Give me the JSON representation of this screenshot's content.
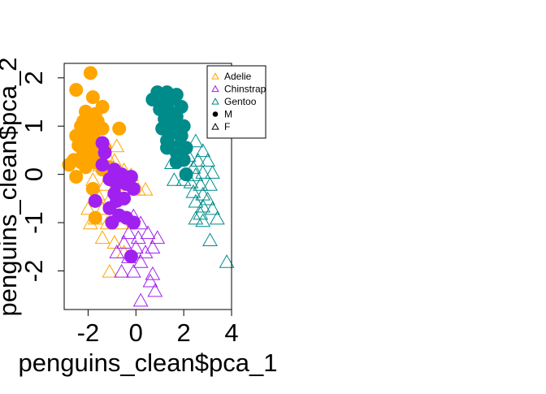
{
  "chart_data": {
    "type": "scatter",
    "xlabel": "penguins_clean$pca_1",
    "ylabel": "penguins_clean$pca_2",
    "xlim": [
      -3.0,
      4.0
    ],
    "ylim": [
      -2.8,
      2.3
    ],
    "x_ticks": [
      -2,
      0,
      2,
      4
    ],
    "y_ticks": [
      -2,
      -1,
      0,
      1,
      2
    ],
    "x_tick_labels": [
      "-2",
      "0",
      "2",
      "4"
    ],
    "y_tick_labels": [
      "-2",
      "-1",
      "0",
      "1",
      "2"
    ],
    "grid": false,
    "legend_position": "top-right",
    "legend": [
      {
        "label": "Adelie",
        "color": "#FFA500",
        "marker": "triangle"
      },
      {
        "label": "Chinstrap",
        "color": "#A020F0",
        "marker": "triangle"
      },
      {
        "label": "Gentoo",
        "color": "#008B8B",
        "marker": "triangle"
      },
      {
        "label": "M",
        "color": "#000000",
        "marker": "filled-circle"
      },
      {
        "label": "F",
        "color": "#000000",
        "marker": "triangle"
      }
    ],
    "series": [
      {
        "species": "Adelie",
        "sex": "M",
        "color": "#FFA500",
        "marker": "filled-circle",
        "points": [
          [
            -1.9,
            2.1
          ],
          [
            -2.5,
            1.75
          ],
          [
            -1.8,
            1.6
          ],
          [
            -1.4,
            1.4
          ],
          [
            -2.1,
            1.3
          ],
          [
            -1.7,
            1.25
          ],
          [
            -2.2,
            1.1
          ],
          [
            -1.9,
            1.15
          ],
          [
            -1.6,
            1.1
          ],
          [
            -2.3,
            1.0
          ],
          [
            -2.0,
            0.95
          ],
          [
            -1.7,
            0.9
          ],
          [
            -1.4,
            0.95
          ],
          [
            -2.5,
            0.8
          ],
          [
            -2.1,
            0.75
          ],
          [
            -1.8,
            0.75
          ],
          [
            -0.7,
            0.95
          ],
          [
            -2.4,
            0.6
          ],
          [
            -2.0,
            0.55
          ],
          [
            -1.6,
            0.6
          ],
          [
            -1.3,
            0.55
          ],
          [
            -2.2,
            0.45
          ],
          [
            -1.9,
            0.4
          ],
          [
            -1.5,
            0.35
          ],
          [
            -2.6,
            0.3
          ],
          [
            -2.3,
            0.25
          ],
          [
            -1.7,
            0.25
          ],
          [
            -2.8,
            0.2
          ],
          [
            -2.1,
            0.15
          ],
          [
            -1.4,
            0.1
          ],
          [
            -1.1,
            0.15
          ],
          [
            -2.5,
            -0.05
          ],
          [
            -1.8,
            -0.3
          ],
          [
            -1.7,
            -0.9
          ]
        ]
      },
      {
        "species": "Adelie",
        "sex": "F",
        "color": "#FFA500",
        "marker": "triangle",
        "points": [
          [
            -0.8,
            0.6
          ],
          [
            -1.2,
            0.4
          ],
          [
            -0.9,
            0.3
          ],
          [
            -1.5,
            0.2
          ],
          [
            -1.1,
            0.0
          ],
          [
            -0.5,
            0.1
          ],
          [
            -0.2,
            0.0
          ],
          [
            -1.8,
            -0.1
          ],
          [
            -1.3,
            -0.2
          ],
          [
            -0.9,
            -0.3
          ],
          [
            -0.4,
            -0.2
          ],
          [
            0.1,
            -0.3
          ],
          [
            -1.6,
            -0.4
          ],
          [
            -1.1,
            -0.5
          ],
          [
            -0.7,
            -0.5
          ],
          [
            -2.0,
            -0.7
          ],
          [
            -1.4,
            -0.7
          ],
          [
            -0.9,
            -0.8
          ],
          [
            -1.7,
            -0.9
          ],
          [
            -1.2,
            -1.0
          ],
          [
            -0.6,
            -1.0
          ],
          [
            -1.9,
            -1.0
          ],
          [
            -1.4,
            -1.3
          ],
          [
            -0.9,
            -1.4
          ],
          [
            -1.1,
            -2.0
          ],
          [
            -0.5,
            -1.6
          ],
          [
            0.4,
            -0.3
          ]
        ]
      },
      {
        "species": "Chinstrap",
        "sex": "M",
        "color": "#A020F0",
        "marker": "filled-circle",
        "points": [
          [
            -1.4,
            0.65
          ],
          [
            -1.3,
            0.45
          ],
          [
            -1.4,
            0.2
          ],
          [
            -0.9,
            0.1
          ],
          [
            -0.6,
            0.0
          ],
          [
            -0.2,
            -0.05
          ],
          [
            -1.1,
            -0.1
          ],
          [
            -0.8,
            -0.2
          ],
          [
            -0.4,
            -0.2
          ],
          [
            -1.7,
            -0.55
          ],
          [
            -0.9,
            -0.4
          ],
          [
            -0.5,
            -0.5
          ],
          [
            -0.1,
            -0.3
          ],
          [
            -0.8,
            -0.55
          ],
          [
            -1.1,
            -0.7
          ],
          [
            -0.7,
            -0.85
          ],
          [
            -0.4,
            -0.9
          ],
          [
            -1.0,
            -1.0
          ],
          [
            -0.1,
            -1.0
          ],
          [
            -0.2,
            -1.7
          ]
        ]
      },
      {
        "species": "Chinstrap",
        "sex": "F",
        "color": "#A020F0",
        "marker": "triangle",
        "points": [
          [
            -0.1,
            -0.85
          ],
          [
            0.2,
            -1.0
          ],
          [
            -0.3,
            -1.2
          ],
          [
            0.1,
            -1.3
          ],
          [
            0.5,
            -1.2
          ],
          [
            -0.5,
            -1.4
          ],
          [
            0.0,
            -1.5
          ],
          [
            0.4,
            -1.6
          ],
          [
            0.9,
            -1.3
          ],
          [
            -0.8,
            -1.6
          ],
          [
            -0.3,
            -1.7
          ],
          [
            0.2,
            -1.8
          ],
          [
            0.7,
            -1.5
          ],
          [
            -0.6,
            -2.0
          ],
          [
            -0.1,
            -2.0
          ],
          [
            0.6,
            -2.2
          ],
          [
            0.8,
            -2.4
          ],
          [
            0.7,
            -2.05
          ],
          [
            0.2,
            -2.6
          ]
        ]
      },
      {
        "species": "Gentoo",
        "sex": "M",
        "color": "#008B8B",
        "marker": "filled-circle",
        "points": [
          [
            0.9,
            1.7
          ],
          [
            1.3,
            1.7
          ],
          [
            1.7,
            1.65
          ],
          [
            0.7,
            1.55
          ],
          [
            1.1,
            1.5
          ],
          [
            1.5,
            1.55
          ],
          [
            1.9,
            1.4
          ],
          [
            1.0,
            1.35
          ],
          [
            1.4,
            1.3
          ],
          [
            1.7,
            1.2
          ],
          [
            1.2,
            1.15
          ],
          [
            1.6,
            1.05
          ],
          [
            2.0,
            1.0
          ],
          [
            1.1,
            0.95
          ],
          [
            1.5,
            0.85
          ],
          [
            1.9,
            0.8
          ],
          [
            1.3,
            0.7
          ],
          [
            1.8,
            0.6
          ],
          [
            2.1,
            0.55
          ],
          [
            1.3,
            0.55
          ],
          [
            1.7,
            0.45
          ],
          [
            2.0,
            0.3
          ],
          [
            1.7,
            0.25
          ],
          [
            2.1,
            0.0
          ]
        ]
      },
      {
        "species": "Gentoo",
        "sex": "F",
        "color": "#008B8B",
        "marker": "triangle",
        "points": [
          [
            2.5,
            0.7
          ],
          [
            2.8,
            0.5
          ],
          [
            2.2,
            0.4
          ],
          [
            2.6,
            0.3
          ],
          [
            3.0,
            0.3
          ],
          [
            2.4,
            0.15
          ],
          [
            2.8,
            0.05
          ],
          [
            3.2,
            0.05
          ],
          [
            2.5,
            0.0
          ],
          [
            1.6,
            -0.1
          ],
          [
            1.5,
            0.25
          ],
          [
            2.0,
            -0.1
          ],
          [
            2.3,
            -0.15
          ],
          [
            2.7,
            -0.2
          ],
          [
            3.1,
            -0.2
          ],
          [
            2.4,
            -0.35
          ],
          [
            2.8,
            -0.4
          ],
          [
            3.0,
            -0.5
          ],
          [
            2.5,
            -0.55
          ],
          [
            2.8,
            -0.65
          ],
          [
            3.2,
            -0.7
          ],
          [
            2.7,
            -0.8
          ],
          [
            2.5,
            -0.9
          ],
          [
            2.8,
            -0.95
          ],
          [
            3.4,
            -0.9
          ],
          [
            3.1,
            -1.35
          ],
          [
            3.8,
            -1.8
          ]
        ]
      }
    ]
  }
}
